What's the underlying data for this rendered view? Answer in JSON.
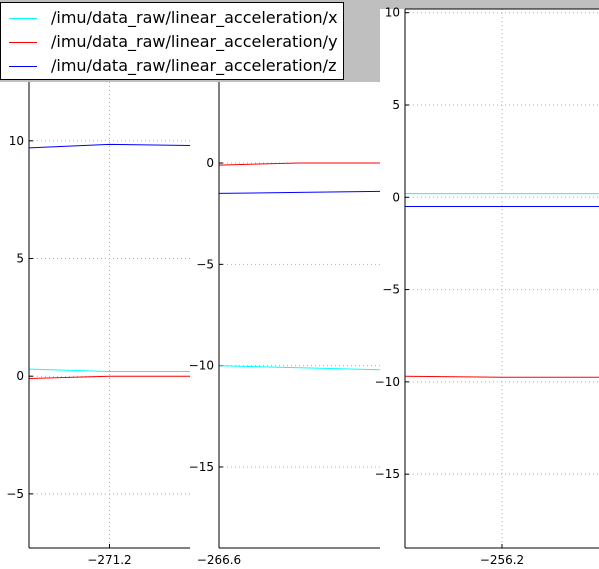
{
  "chart_data": [
    {
      "type": "line",
      "panel": "left",
      "xlim": [
        -271.3,
        -271.1
      ],
      "ylim": [
        -7.3,
        12.5
      ],
      "yticks": [
        -5,
        0,
        5,
        10
      ],
      "xticks": [
        -271.2
      ],
      "grid": true,
      "series": [
        {
          "name": "/imu/data_raw/linear_acceleration/x",
          "color": "#00ffff",
          "x": [
            -271.3,
            -271.2,
            -271.1
          ],
          "y": [
            0.3,
            0.2,
            0.2
          ]
        },
        {
          "name": "/imu/data_raw/linear_acceleration/y",
          "color": "#ff0000",
          "x": [
            -271.3,
            -271.2,
            -271.1
          ],
          "y": [
            -0.1,
            0.0,
            0.0
          ]
        },
        {
          "name": "/imu/data_raw/linear_acceleration/z",
          "color": "#0000ff",
          "x": [
            -271.3,
            -271.2,
            -271.1
          ],
          "y": [
            9.7,
            9.85,
            9.8
          ]
        }
      ]
    },
    {
      "type": "line",
      "panel": "middle",
      "xlim": [
        -266.6,
        -266.3
      ],
      "ylim": [
        -19.0,
        4.0
      ],
      "yticks": [
        -15,
        -10,
        -5,
        0
      ],
      "xticks": [
        -266.6
      ],
      "grid": true,
      "series": [
        {
          "name": "/imu/data_raw/linear_acceleration/x",
          "color": "#00ffff",
          "x": [
            -266.6,
            -266.45,
            -266.3
          ],
          "y": [
            -10.0,
            -10.1,
            -10.2
          ]
        },
        {
          "name": "/imu/data_raw/linear_acceleration/y",
          "color": "#ff0000",
          "x": [
            -266.6,
            -266.45,
            -266.3
          ],
          "y": [
            -0.1,
            0.0,
            0.0
          ]
        },
        {
          "name": "/imu/data_raw/linear_acceleration/z",
          "color": "#0000ff",
          "x": [
            -266.6,
            -266.45,
            -266.3
          ],
          "y": [
            -1.5,
            -1.45,
            -1.4
          ]
        }
      ]
    },
    {
      "type": "line",
      "panel": "right",
      "xlim": [
        -256.4,
        -256.0
      ],
      "ylim": [
        -19.0,
        10.2
      ],
      "yticks": [
        -15,
        -10,
        -5,
        0,
        5,
        10
      ],
      "xticks": [
        -256.2
      ],
      "grid": true,
      "series": [
        {
          "name": "/imu/data_raw/linear_acceleration/x",
          "color": "#00ffff",
          "x": [
            -256.4,
            -256.2,
            -256.0
          ],
          "y": [
            0.2,
            0.2,
            0.2
          ]
        },
        {
          "name": "/imu/data_raw/linear_acceleration/y",
          "color": "#ff0000",
          "x": [
            -256.4,
            -256.2,
            -256.0
          ],
          "y": [
            -9.7,
            -9.75,
            -9.75
          ]
        },
        {
          "name": "/imu/data_raw/linear_acceleration/z",
          "color": "#0000ff",
          "x": [
            -256.4,
            -256.2,
            -256.0
          ],
          "y": [
            -0.5,
            -0.5,
            -0.5
          ]
        }
      ]
    }
  ],
  "legend": {
    "placement": "top-left",
    "items": [
      {
        "label": "/imu/data_raw/linear_acceleration/x",
        "color": "#00ffff"
      },
      {
        "label": "/imu/data_raw/linear_acceleration/y",
        "color": "#ff0000"
      },
      {
        "label": "/imu/data_raw/linear_acceleration/z",
        "color": "#0000ff"
      }
    ]
  }
}
